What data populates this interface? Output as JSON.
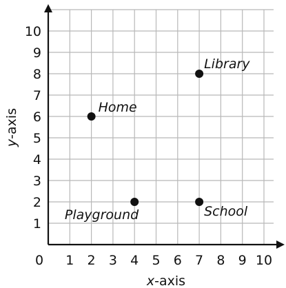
{
  "chart_data": {
    "type": "scatter",
    "xlabel_var": "x",
    "xlabel_rest": "-axis",
    "ylabel_var": "y",
    "ylabel_rest": "-axis",
    "origin_label": "0",
    "xlim": [
      0,
      10
    ],
    "ylim": [
      0,
      10
    ],
    "x_ticks": [
      "1",
      "2",
      "3",
      "4",
      "5",
      "6",
      "7",
      "8",
      "9",
      "10"
    ],
    "y_ticks": [
      "1",
      "2",
      "3",
      "4",
      "5",
      "6",
      "7",
      "8",
      "9",
      "10"
    ],
    "grid": true,
    "points": [
      {
        "label": "Home",
        "x": 2,
        "y": 6
      },
      {
        "label": "Library",
        "x": 7,
        "y": 8
      },
      {
        "label": "Playground",
        "x": 4,
        "y": 2
      },
      {
        "label": "School",
        "x": 7,
        "y": 2
      }
    ],
    "colors": {
      "point": "#111111",
      "grid": "#b8b8b8",
      "axis": "#111111"
    }
  }
}
